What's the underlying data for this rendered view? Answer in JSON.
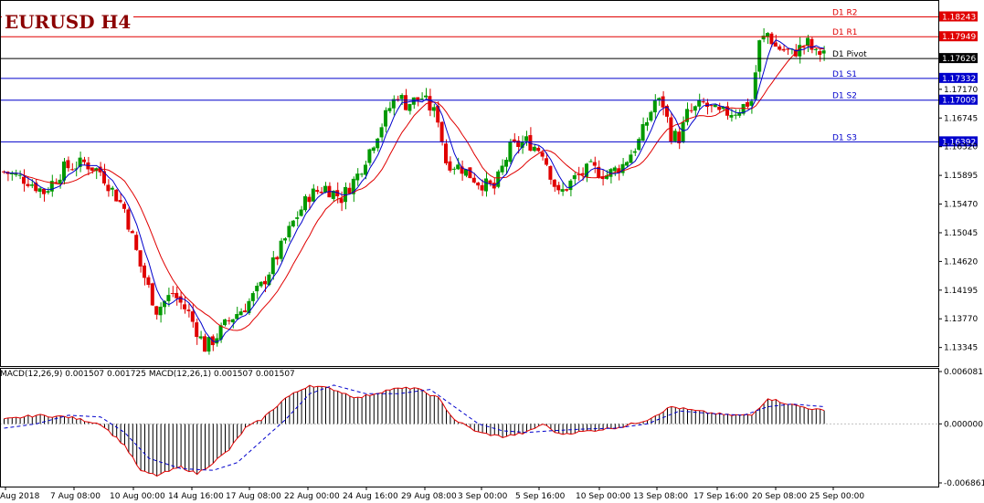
{
  "title": "EURUSD H4",
  "macd_label": "MACD(12,26,9) 0.001507 0.001725 MACD(12,26,1) 0.001507 0.001507",
  "colors": {
    "up": "#009900",
    "down": "#e00000",
    "ma_fast": "#0000cc",
    "ma_slow": "#e00000",
    "level_resistance": "#e00000",
    "level_support": "#0000cc",
    "pivot": "#000000"
  },
  "chart_data": [
    {
      "type": "candlestick",
      "symbol": "EURUSD",
      "timeframe": "H4",
      "ylim": [
        1.1307,
        1.18493
      ],
      "y_ticks": [
        "1.18243",
        "1.17949",
        "1.17626",
        "1.17332",
        "1.17170",
        "1.17009",
        "1.16745",
        "1.16392",
        "1.16320",
        "1.15895",
        "1.15470",
        "1.15045",
        "1.14620",
        "1.14195",
        "1.13770",
        "1.13345"
      ],
      "levels": [
        {
          "name": "D1 R2",
          "value": 1.18243,
          "label": "1.18243",
          "role": "resistance"
        },
        {
          "name": "D1 R1",
          "value": 1.17949,
          "label": "1.17949",
          "role": "resistance"
        },
        {
          "name": "D1 Pivot",
          "value": 1.17626,
          "label": "1.17626",
          "role": "pivot"
        },
        {
          "name": "D1 S1",
          "value": 1.17332,
          "label": "1.17332",
          "role": "support"
        },
        {
          "name": "D1 S2",
          "value": 1.17009,
          "label": "1.17009",
          "role": "support"
        },
        {
          "name": "D1 S3",
          "value": 1.16392,
          "label": "1.16392",
          "role": "support"
        }
      ],
      "x_labels": [
        "2 Aug 2018",
        "7 Aug 08:00",
        "10 Aug 00:00",
        "14 Aug 16:00",
        "17 Aug 08:00",
        "22 Aug 00:00",
        "24 Aug 16:00",
        "29 Aug 08:00",
        "3 Sep 00:00",
        "5 Sep 16:00",
        "10 Sep 00:00",
        "13 Sep 08:00",
        "17 Sep 16:00",
        "20 Sep 08:00",
        "25 Sep 00:00"
      ],
      "close_path": [
        [
          0,
          1.1595
        ],
        [
          6,
          1.1582
        ],
        [
          10,
          1.1565
        ],
        [
          15,
          1.16
        ],
        [
          20,
          1.1608
        ],
        [
          24,
          1.1595
        ],
        [
          30,
          1.154
        ],
        [
          34,
          1.1455
        ],
        [
          38,
          1.139
        ],
        [
          42,
          1.1415
        ],
        [
          46,
          1.1385
        ],
        [
          50,
          1.1335
        ],
        [
          52,
          1.1345
        ],
        [
          56,
          1.1375
        ],
        [
          60,
          1.1395
        ],
        [
          64,
          1.1425
        ],
        [
          68,
          1.147
        ],
        [
          72,
          1.152
        ],
        [
          76,
          1.156
        ],
        [
          80,
          1.1572
        ],
        [
          84,
          1.1556
        ],
        [
          88,
          1.159
        ],
        [
          92,
          1.164
        ],
        [
          96,
          1.169
        ],
        [
          98,
          1.171
        ],
        [
          100,
          1.1695
        ],
        [
          104,
          1.1705
        ],
        [
          108,
          1.1675
        ],
        [
          110,
          1.161
        ],
        [
          114,
          1.16
        ],
        [
          118,
          1.158
        ],
        [
          122,
          1.157
        ],
        [
          126,
          1.163
        ],
        [
          130,
          1.164
        ],
        [
          134,
          1.1625
        ],
        [
          138,
          1.156
        ],
        [
          142,
          1.1585
        ],
        [
          146,
          1.16
        ],
        [
          150,
          1.159
        ],
        [
          154,
          1.1605
        ],
        [
          158,
          1.164
        ],
        [
          162,
          1.17
        ],
        [
          164,
          1.1695
        ],
        [
          166,
          1.165
        ],
        [
          168,
          1.1645
        ],
        [
          170,
          1.168
        ],
        [
          174,
          1.1695
        ],
        [
          178,
          1.168
        ],
        [
          182,
          1.1685
        ],
        [
          186,
          1.17
        ],
        [
          188,
          1.1785
        ],
        [
          190,
          1.18
        ],
        [
          192,
          1.178
        ],
        [
          196,
          1.177
        ],
        [
          200,
          1.1785
        ],
        [
          202,
          1.1768
        ],
        [
          204,
          1.1775
        ]
      ]
    },
    {
      "type": "macd",
      "params": "12,26,9",
      "ylim": [
        -0.006861,
        0.006081
      ],
      "y_ticks": [
        "0.006081",
        "0.000000",
        "-0.006861"
      ],
      "hist_path": [
        [
          0,
          0.0005
        ],
        [
          8,
          0.001
        ],
        [
          16,
          0.0008
        ],
        [
          24,
          0.0
        ],
        [
          30,
          -0.0025
        ],
        [
          34,
          -0.0055
        ],
        [
          38,
          -0.006
        ],
        [
          44,
          -0.005
        ],
        [
          48,
          -0.0058
        ],
        [
          52,
          -0.0045
        ],
        [
          56,
          -0.003
        ],
        [
          60,
          -0.0005
        ],
        [
          64,
          0.0005
        ],
        [
          70,
          0.003
        ],
        [
          76,
          0.0045
        ],
        [
          82,
          0.004
        ],
        [
          88,
          0.003
        ],
        [
          96,
          0.004
        ],
        [
          102,
          0.0042
        ],
        [
          108,
          0.003
        ],
        [
          112,
          0.0005
        ],
        [
          118,
          -0.001
        ],
        [
          124,
          -0.0015
        ],
        [
          130,
          -0.001
        ],
        [
          134,
          0.0
        ],
        [
          138,
          -0.0012
        ],
        [
          146,
          -0.0008
        ],
        [
          154,
          -0.0003
        ],
        [
          160,
          0.0005
        ],
        [
          166,
          0.002
        ],
        [
          172,
          0.0015
        ],
        [
          180,
          0.001
        ],
        [
          186,
          0.001
        ],
        [
          190,
          0.003
        ],
        [
          196,
          0.0022
        ],
        [
          204,
          0.0015
        ]
      ],
      "signal_path": [
        [
          0,
          -0.0005
        ],
        [
          8,
          0.0
        ],
        [
          16,
          0.001
        ],
        [
          24,
          0.0008
        ],
        [
          30,
          -0.001
        ],
        [
          36,
          -0.004
        ],
        [
          44,
          -0.0052
        ],
        [
          52,
          -0.0054
        ],
        [
          58,
          -0.0045
        ],
        [
          64,
          -0.002
        ],
        [
          70,
          0.0005
        ],
        [
          76,
          0.0035
        ],
        [
          82,
          0.0045
        ],
        [
          90,
          0.0035
        ],
        [
          98,
          0.0035
        ],
        [
          106,
          0.004
        ],
        [
          112,
          0.002
        ],
        [
          118,
          0.0
        ],
        [
          124,
          -0.0008
        ],
        [
          130,
          -0.001
        ],
        [
          136,
          -0.0008
        ],
        [
          144,
          -0.0006
        ],
        [
          152,
          -0.0005
        ],
        [
          160,
          0.0
        ],
        [
          168,
          0.0015
        ],
        [
          176,
          0.0012
        ],
        [
          184,
          0.001
        ],
        [
          190,
          0.002
        ],
        [
          196,
          0.0023
        ],
        [
          204,
          0.002
        ]
      ]
    }
  ]
}
